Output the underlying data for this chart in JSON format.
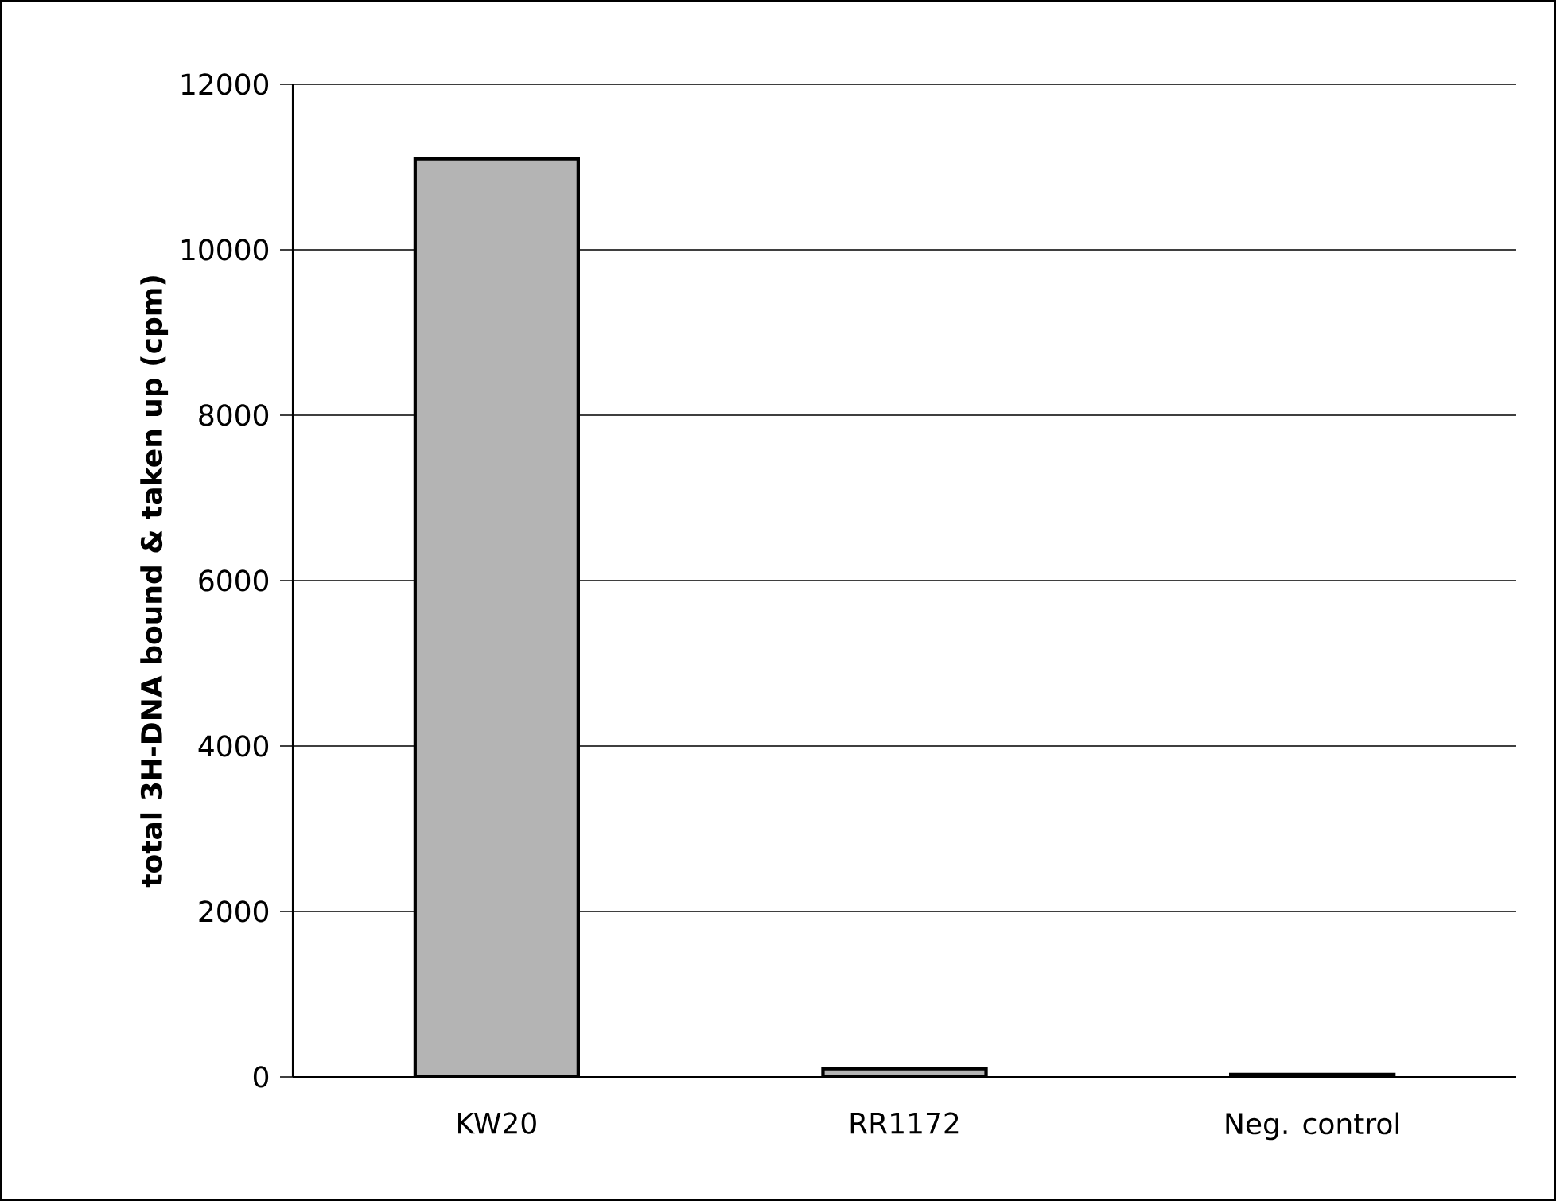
{
  "chart_data": {
    "type": "bar",
    "ylabel": "total 3H-DNA bound & taken up (cpm)",
    "categories": [
      "KW20",
      "RR1172",
      "Neg. control"
    ],
    "values": [
      11100,
      100,
      30
    ],
    "color": "#b4b4b4",
    "ylim": [
      0,
      12000
    ],
    "yticks": [
      0,
      2000,
      4000,
      6000,
      8000,
      10000,
      12000
    ],
    "grid": "y"
  }
}
